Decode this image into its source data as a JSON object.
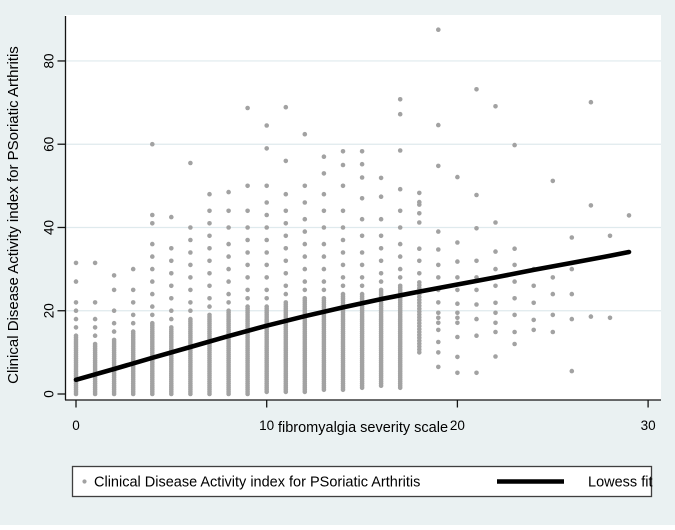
{
  "figure": {
    "background": "#eaf1f2",
    "plot_background": "#ffffff",
    "grid_color": "#dfeaed",
    "axis_color": "#141414",
    "point_color": "#a2a2a2",
    "lowess_color": "#000000",
    "legend_border_color": "#3f3f3f",
    "legend_background": "#ffffff"
  },
  "chart_data": {
    "type": "scatter",
    "title": "",
    "xlabel": "fibromyalgia severity scale",
    "ylabel": "Clinical Disease Activity index for PSoriatic Arthritis",
    "xlim": [
      0,
      30.6
    ],
    "ylim": [
      0,
      91
    ],
    "xticks": [
      0,
      10,
      20,
      30
    ],
    "yticks": [
      0,
      20,
      40,
      60,
      80
    ],
    "xtick_labels": [
      "0",
      "10",
      "20",
      "30"
    ],
    "ytick_labels": [
      "0",
      "20",
      "40",
      "60",
      "80"
    ],
    "grid": "horizontal-only",
    "legend_position": "bottom-center",
    "series": [
      {
        "name": "Clinical Disease Activity index for PSoriatic Arthritis",
        "type": "scatter",
        "marker": "small-gray-dot",
        "columns": [
          {
            "x": 0,
            "dense": [
              0,
              14,
              0.5
            ],
            "extra": [
              16,
              18,
              20,
              22,
              27,
              31.5
            ]
          },
          {
            "x": 1,
            "dense": [
              0,
              12,
              0.5
            ],
            "extra": [
              14,
              16,
              18,
              22,
              31.5
            ]
          },
          {
            "x": 2,
            "dense": [
              0,
              13,
              0.5
            ],
            "extra": [
              15,
              17,
              20,
              25,
              28.5
            ]
          },
          {
            "x": 3,
            "dense": [
              0,
              15,
              0.5
            ],
            "extra": [
              17,
              19,
              22,
              25,
              30
            ]
          },
          {
            "x": 4,
            "dense": [
              0,
              17,
              0.5
            ],
            "extra": [
              19,
              21,
              24,
              27,
              30,
              33,
              36,
              41,
              43,
              60
            ]
          },
          {
            "x": 5,
            "dense": [
              0,
              16,
              0.5
            ],
            "extra": [
              18,
              20,
              23,
              26,
              29,
              32,
              35,
              42.5
            ]
          },
          {
            "x": 6,
            "dense": [
              0,
              18,
              0.5
            ],
            "extra": [
              20,
              22,
              25,
              28,
              31,
              34,
              37,
              40,
              55.5
            ]
          },
          {
            "x": 7,
            "dense": [
              0,
              19,
              0.5
            ],
            "extra": [
              21,
              23,
              26,
              29,
              32,
              35,
              38,
              41,
              44,
              48
            ]
          },
          {
            "x": 8,
            "dense": [
              0,
              20,
              0.5
            ],
            "extra": [
              22,
              24,
              27,
              30,
              33,
              36,
              40,
              44,
              48.5
            ]
          },
          {
            "x": 9,
            "dense": [
              0,
              21,
              0.5
            ],
            "extra": [
              23,
              25,
              28,
              31,
              34,
              37,
              40,
              44,
              50,
              68.7
            ]
          },
          {
            "x": 10,
            "dense": [
              0.5,
              21,
              0.5
            ],
            "extra": [
              23,
              25,
              28,
              31,
              34,
              37,
              40,
              43,
              46,
              50,
              59,
              64.5
            ]
          },
          {
            "x": 11,
            "dense": [
              0.5,
              22,
              0.5
            ],
            "extra": [
              24,
              26,
              29,
              32,
              35,
              38,
              41,
              44,
              48,
              56,
              68.9
            ]
          },
          {
            "x": 12,
            "dense": [
              0.5,
              23,
              0.5
            ],
            "extra": [
              25,
              27,
              30,
              33,
              36,
              39,
              42,
              46,
              50,
              62.4
            ]
          },
          {
            "x": 13,
            "dense": [
              1,
              23,
              0.5
            ],
            "extra": [
              25,
              27,
              30,
              33,
              36,
              40,
              44,
              48,
              53,
              57
            ]
          },
          {
            "x": 14,
            "dense": [
              1,
              24,
              0.5
            ],
            "extra": [
              26,
              28,
              31,
              34,
              37,
              40,
              44,
              50,
              55,
              58.3
            ]
          },
          {
            "x": 15,
            "dense": [
              1.5,
              24,
              0.5
            ],
            "extra": [
              26,
              28,
              31,
              34,
              38,
              42,
              47,
              52,
              55.2,
              58.3
            ]
          },
          {
            "x": 16,
            "dense": [
              2,
              25,
              0.5
            ],
            "extra": [
              27,
              29,
              32,
              35,
              38,
              42,
              47.4,
              51.9
            ]
          },
          {
            "x": 17,
            "dense": [
              1.5,
              26,
              0.5
            ],
            "extra": [
              28,
              30,
              33,
              36,
              40,
              44,
              49.2,
              58.5,
              67.2,
              70.8
            ]
          },
          {
            "x": 18,
            "dense": [
              10,
              27,
              0.7
            ],
            "extra": [
              29,
              32,
              34.9,
              41.2,
              43.4,
              45.5,
              46.1,
              48.3
            ]
          },
          {
            "x": 19,
            "extra": [
              6.5,
              10,
              12.5,
              15.4,
              17.1,
              18.3,
              19.5,
              22,
              25,
              28,
              31,
              34.7,
              39,
              54.8,
              64.6,
              87.5
            ]
          },
          {
            "x": 20,
            "extra": [
              5.1,
              8.9,
              13.7,
              17.1,
              18.3,
              19.5,
              21.7,
              25,
              28,
              31.8,
              36.4,
              52.1
            ]
          },
          {
            "x": 21,
            "extra": [
              5.1,
              14,
              18,
              21.5,
              25,
              28,
              32,
              39.8,
              47.8,
              73.2
            ]
          },
          {
            "x": 22,
            "extra": [
              9,
              14.9,
              17.1,
              19.5,
              21.9,
              26,
              30,
              34.2,
              41.2,
              69.1
            ]
          },
          {
            "x": 23,
            "extra": [
              12,
              14.9,
              19,
              23,
              27,
              31,
              34.9,
              59.8
            ]
          },
          {
            "x": 24,
            "extra": [
              15.4,
              17.8,
              21.9,
              26,
              30
            ]
          },
          {
            "x": 25,
            "extra": [
              14.9,
              19,
              24,
              28,
              51.2
            ]
          },
          {
            "x": 26,
            "extra": [
              5.5,
              18,
              24,
              30,
              37.6
            ]
          },
          {
            "x": 27,
            "extra": [
              18.6,
              45.3,
              70.1
            ]
          },
          {
            "x": 28,
            "extra": [
              18.3,
              38
            ]
          },
          {
            "x": 29,
            "extra": [
              42.9
            ]
          }
        ]
      },
      {
        "name": "Lowess fit",
        "type": "line",
        "points": [
          [
            0,
            3.4
          ],
          [
            2,
            6.0
          ],
          [
            4,
            8.7
          ],
          [
            6,
            11.3
          ],
          [
            8,
            13.9
          ],
          [
            10,
            16.4
          ],
          [
            12,
            18.7
          ],
          [
            14,
            20.8
          ],
          [
            16,
            22.8
          ],
          [
            18,
            24.6
          ],
          [
            20,
            26.3
          ],
          [
            22,
            28.0
          ],
          [
            24,
            29.8
          ],
          [
            26,
            31.5
          ],
          [
            28,
            33.2
          ],
          [
            29,
            34.1
          ]
        ]
      }
    ]
  },
  "legend": {
    "items": [
      {
        "label": "Clinical Disease Activity index for PSoriatic Arthritis",
        "marker": "dot"
      },
      {
        "label": "Lowess fit",
        "marker": "line"
      }
    ]
  }
}
